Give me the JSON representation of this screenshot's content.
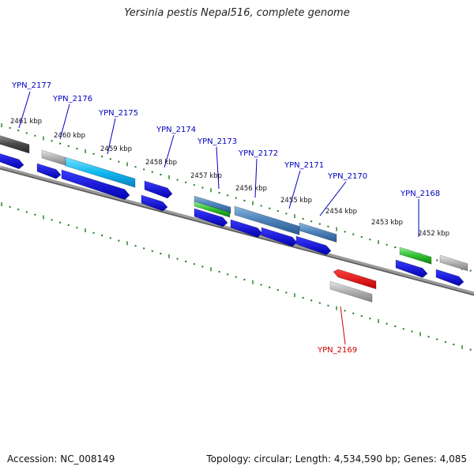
{
  "title": "Yersinia pestis Nepal516, complete genome",
  "footer": {
    "accession": "Accession: NC_008149",
    "summary": "Topology: circular; Length: 4,534,590 bp; Genes: 4,085"
  },
  "colors": {
    "cds": "#1010e0",
    "cds_selected": "#e01010",
    "label_default": "#0000c0",
    "label_selected": "#cc0000",
    "tick": "#1a7a1a",
    "backbone": "#7a7a7a",
    "feature_cyan": "#10b8f0",
    "feature_steel": "#4a80b8",
    "feature_green": "#30c030",
    "feature_gray": "#b0b0b0",
    "feature_dark": "#4a4a4a"
  },
  "scale_labels": [
    "2461 kbp",
    "2460 kbp",
    "2459 kbp",
    "2458 kbp",
    "2457 kbp",
    "2456 kbp",
    "2455 kbp",
    "2454 kbp",
    "2453 kbp",
    "2452 kbp"
  ],
  "genes": [
    {
      "label": "YPN_2177",
      "selected": false
    },
    {
      "label": "YPN_2176",
      "selected": false
    },
    {
      "label": "YPN_2175",
      "selected": false
    },
    {
      "label": "YPN_2174",
      "selected": false
    },
    {
      "label": "YPN_2173",
      "selected": false
    },
    {
      "label": "YPN_2172",
      "selected": false
    },
    {
      "label": "YPN_2171",
      "selected": false
    },
    {
      "label": "YPN_2170",
      "selected": false
    },
    {
      "label": "YPN_2168",
      "selected": false
    },
    {
      "label": "YPN_2169",
      "selected": true
    }
  ]
}
